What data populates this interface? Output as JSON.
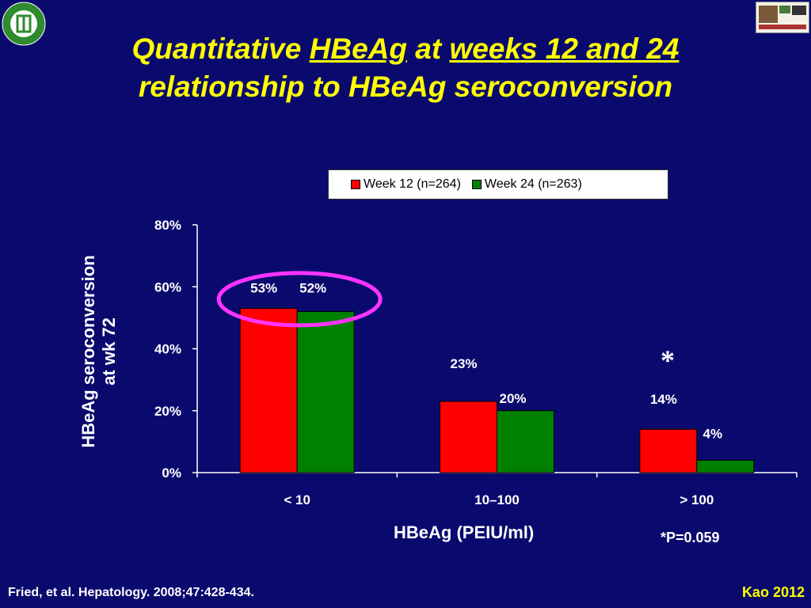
{
  "title": {
    "line1_part1": "Quantitative ",
    "line1_part2": "HBeAg",
    "line1_part3": " at ",
    "line1_part4": "weeks 12 and 24",
    "line2": "relationship to HBeAg seroconversion"
  },
  "footer": {
    "citation": "Fried, et al. Hepatology. 2008;47:428-434.",
    "author": "Kao 2012"
  },
  "logos": {
    "left_icon": "school-seal-icon",
    "right_icon": "ntuh-liver-center-logo"
  },
  "annotations": {
    "star": "*",
    "p_value": "*P=0.059"
  },
  "colors": {
    "background": "#0a0a6e",
    "title": "#ffff00",
    "series_week12": "#ff0000",
    "series_week24": "#008000",
    "highlight_circle": "#ff33ff"
  },
  "chart_data": {
    "type": "bar",
    "categories": [
      "< 10",
      "10–100",
      "> 100"
    ],
    "series": [
      {
        "name": "Week 12 (n=264)",
        "values": [
          53,
          23,
          14
        ],
        "labels": [
          "53%",
          "23%",
          "14%"
        ]
      },
      {
        "name": "Week 24 (n=263)",
        "values": [
          52,
          20,
          4
        ],
        "labels": [
          "52%",
          "20%",
          "4%"
        ]
      }
    ],
    "xlabel": "HBeAg (PEIU/ml)",
    "ylabel_line1": "HBeAg seroconversion",
    "ylabel_line2": "at wk 72",
    "ylim": [
      0,
      80
    ],
    "yticks": [
      "0%",
      "20%",
      "40%",
      "60%",
      "80%"
    ],
    "legend_position": "top-right",
    "grid": false
  }
}
